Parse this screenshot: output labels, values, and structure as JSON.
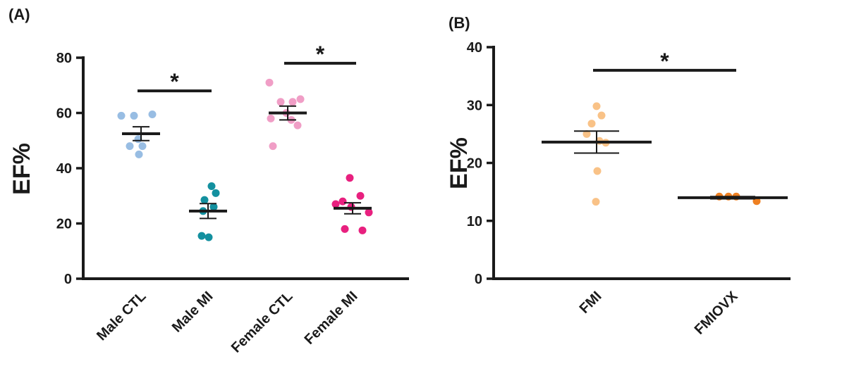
{
  "chart_data": [
    {
      "panel_label": "(A)",
      "type": "scatter",
      "ylabel": "EF%",
      "ylim": [
        0,
        80
      ],
      "yticks": [
        "0",
        "20",
        "40",
        "60",
        "80"
      ],
      "categories": [
        "Male  CTL",
        "Male MI",
        "Female CTL",
        "Female MI"
      ],
      "groups": [
        {
          "name": "Male  CTL",
          "color": "#98bde3",
          "mean": 52.5,
          "sem": 2.5,
          "points": [
            59,
            59,
            59.5,
            50.5,
            48,
            48,
            45
          ]
        },
        {
          "name": "Male MI",
          "color": "#13909f",
          "mean": 24.5,
          "sem": 2.7,
          "points": [
            33.5,
            31,
            28.5,
            26,
            24.5,
            15.5,
            15
          ]
        },
        {
          "name": "Female CTL",
          "color": "#f09ec6",
          "mean": 60,
          "sem": 2.5,
          "points": [
            71,
            64,
            64,
            65,
            60,
            58,
            57.5,
            55.5,
            48
          ]
        },
        {
          "name": "Female MI",
          "color": "#e8207f",
          "mean": 25.5,
          "sem": 2,
          "points": [
            36.5,
            30,
            28,
            27,
            26,
            24,
            18,
            17.5
          ]
        }
      ],
      "significance": [
        {
          "from": 0,
          "to": 1,
          "y": 68,
          "label": "*"
        },
        {
          "from": 2,
          "to": 3,
          "y": 78,
          "label": "*"
        }
      ]
    },
    {
      "panel_label": "(B)",
      "type": "scatter",
      "ylabel": "EF%",
      "ylim": [
        0,
        40
      ],
      "yticks": [
        "0",
        "10",
        "20",
        "30",
        "40"
      ],
      "categories": [
        "FMI",
        "FMIOVX"
      ],
      "groups": [
        {
          "name": "FMI",
          "color": "#f9c287",
          "mean": 23.6,
          "sem": 1.9,
          "points": [
            29.8,
            28.2,
            26.8,
            25,
            23.8,
            23.5,
            18.6,
            13.3
          ]
        },
        {
          "name": "FMIOVX",
          "color": "#ee8022",
          "mean": 14,
          "sem": 0.2,
          "points": [
            14.2,
            14.2,
            14.2,
            13.4
          ]
        }
      ],
      "significance": [
        {
          "from": 0,
          "to": 1,
          "y": 36,
          "label": "*"
        }
      ]
    }
  ]
}
